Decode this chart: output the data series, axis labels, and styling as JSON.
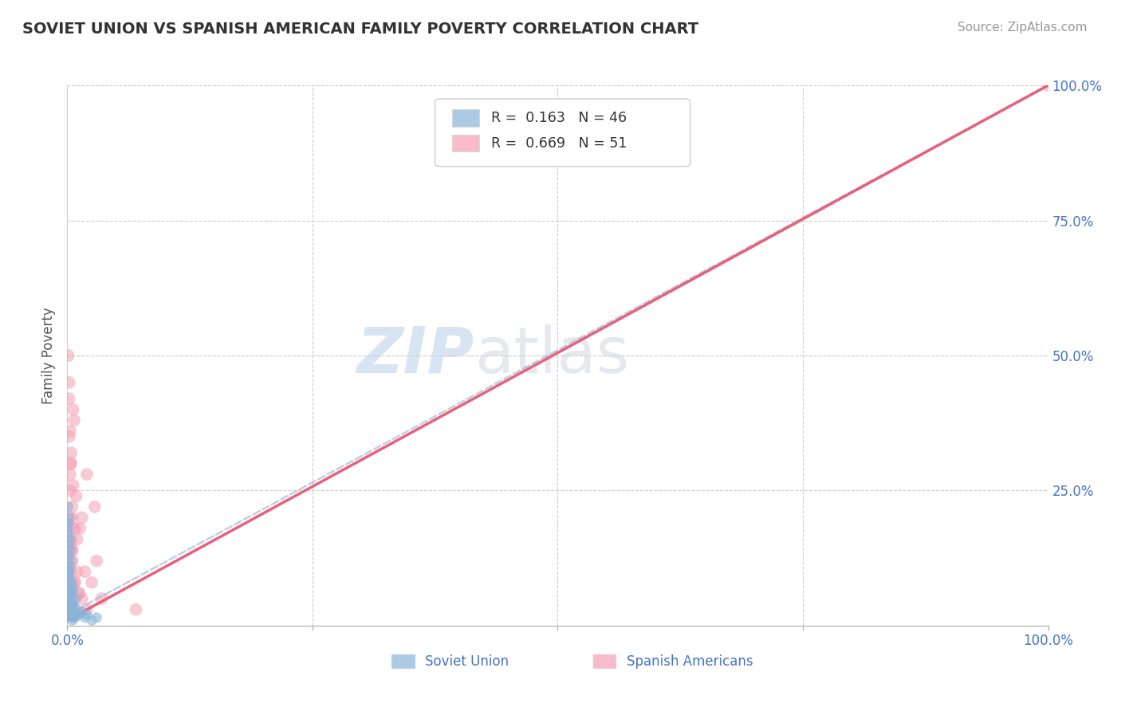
{
  "title": "SOVIET UNION VS SPANISH AMERICAN FAMILY POVERTY CORRELATION CHART",
  "source": "Source: ZipAtlas.com",
  "ylabel": "Family Poverty",
  "watermark_zip": "ZIP",
  "watermark_atlas": "atlas",
  "legend_r1": "0.163",
  "legend_n1": "46",
  "legend_r2": "0.669",
  "legend_n2": "51",
  "soviet_color": "#8ab4d9",
  "spanish_color": "#f4a0b5",
  "soviet_line_color": "#a0bcd8",
  "spanish_line_color": "#e8607a",
  "axis_color": "#4472c4",
  "grid_color": "#cccccc",
  "background": "#ffffff",
  "title_color": "#333333",
  "xlim": [
    0,
    100
  ],
  "ylim": [
    0,
    100
  ],
  "soviet_points_x": [
    0.2,
    0.3,
    0.1,
    0.4,
    0.2,
    0.3,
    0.5,
    0.1,
    0.2,
    0.4,
    0.6,
    0.3,
    0.2,
    0.5,
    0.1,
    0.7,
    0.4,
    0.3,
    0.2,
    0.8,
    1.0,
    0.9,
    1.2,
    0.6,
    0.5,
    1.5,
    1.8,
    2.0,
    2.5,
    3.0,
    0.1,
    0.2,
    0.3,
    0.1,
    0.2,
    0.3,
    0.4,
    0.1,
    0.2,
    0.5,
    0.3,
    0.4,
    0.6,
    0.2,
    0.1,
    0.7
  ],
  "soviet_points_y": [
    5.0,
    3.0,
    7.0,
    2.0,
    8.5,
    4.0,
    1.5,
    9.0,
    6.0,
    3.5,
    2.5,
    11.0,
    13.0,
    1.0,
    15.0,
    2.0,
    4.5,
    6.5,
    10.0,
    1.5,
    3.0,
    5.0,
    2.0,
    7.0,
    4.0,
    2.5,
    1.5,
    2.0,
    1.0,
    1.5,
    18.0,
    20.0,
    16.0,
    22.0,
    12.0,
    14.0,
    8.0,
    17.0,
    10.0,
    6.0,
    3.0,
    2.5,
    1.5,
    4.0,
    19.0,
    3.5
  ],
  "spanish_points_x": [
    0.2,
    0.3,
    0.4,
    0.5,
    0.6,
    0.3,
    0.2,
    0.4,
    0.5,
    0.1,
    0.8,
    0.6,
    0.3,
    0.5,
    0.4,
    1.0,
    0.9,
    1.2,
    0.7,
    0.5,
    1.5,
    1.8,
    2.0,
    1.3,
    2.5,
    3.0,
    2.8,
    3.5,
    0.2,
    0.3,
    0.4,
    0.6,
    0.5,
    0.3,
    0.4,
    0.5,
    0.6,
    0.8,
    1.0,
    1.2,
    0.3,
    0.4,
    0.2,
    0.5,
    0.7,
    1.5,
    2.0,
    0.3,
    0.4,
    7.0,
    100.0
  ],
  "spanish_points_y": [
    35.0,
    25.0,
    30.0,
    20.0,
    40.0,
    15.0,
    45.0,
    10.0,
    22.0,
    50.0,
    8.0,
    18.0,
    28.0,
    12.0,
    32.0,
    16.0,
    24.0,
    6.0,
    38.0,
    14.0,
    20.0,
    10.0,
    28.0,
    18.0,
    8.0,
    12.0,
    22.0,
    5.0,
    42.0,
    6.0,
    16.0,
    26.0,
    4.0,
    36.0,
    8.0,
    14.0,
    2.0,
    18.0,
    10.0,
    6.0,
    3.0,
    12.0,
    20.0,
    4.0,
    8.0,
    5.0,
    3.0,
    30.0,
    2.0,
    3.0,
    100.0
  ]
}
